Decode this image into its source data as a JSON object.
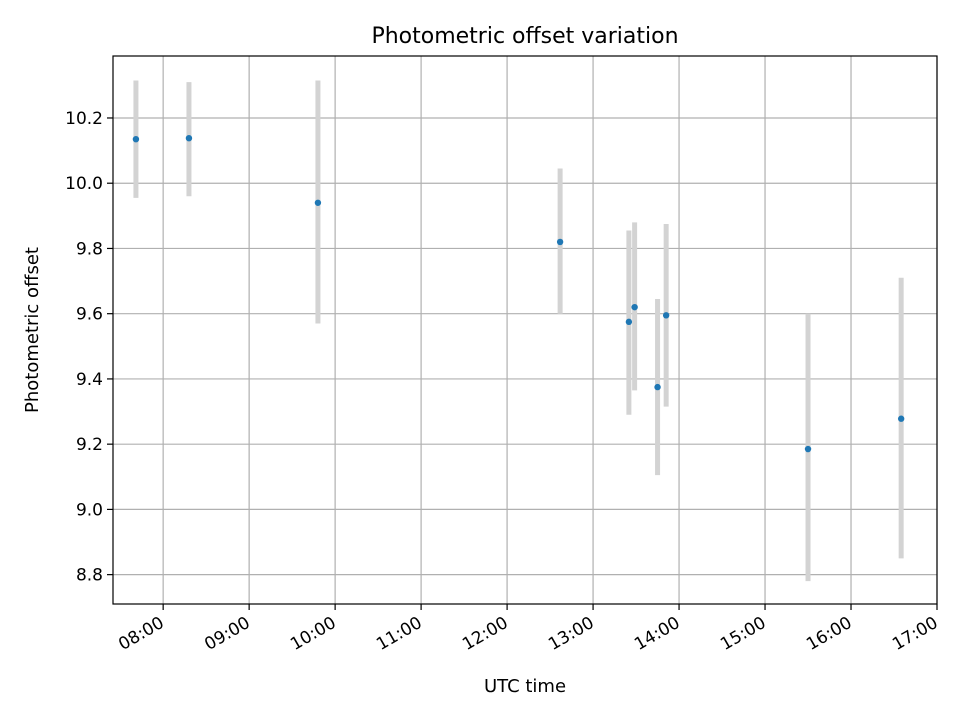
{
  "chart_data": {
    "type": "scatter",
    "title": "Photometric offset variation",
    "xlabel": "UTC time",
    "ylabel": "Photometric offset",
    "grid": true,
    "xlim": [
      "07:25",
      "17:00"
    ],
    "ylim": [
      8.71,
      10.39
    ],
    "x_ticks": [
      "08:00",
      "09:00",
      "10:00",
      "11:00",
      "12:00",
      "13:00",
      "14:00",
      "15:00",
      "16:00",
      "17:00"
    ],
    "y_ticks": [
      "8.8",
      "9.0",
      "9.2",
      "9.4",
      "9.6",
      "9.8",
      "10.0",
      "10.2"
    ],
    "points": [
      {
        "time": "07:41",
        "value": 10.135,
        "err_low": 9.955,
        "err_high": 10.315
      },
      {
        "time": "08:18",
        "value": 10.138,
        "err_low": 9.96,
        "err_high": 10.31
      },
      {
        "time": "09:48",
        "value": 9.94,
        "err_low": 9.57,
        "err_high": 10.315
      },
      {
        "time": "12:37",
        "value": 9.82,
        "err_low": 9.6,
        "err_high": 10.045
      },
      {
        "time": "13:25",
        "value": 9.575,
        "err_low": 9.29,
        "err_high": 9.855
      },
      {
        "time": "13:29",
        "value": 9.62,
        "err_low": 9.365,
        "err_high": 9.88
      },
      {
        "time": "13:45",
        "value": 9.375,
        "err_low": 9.105,
        "err_high": 9.645
      },
      {
        "time": "13:51",
        "value": 9.595,
        "err_low": 9.315,
        "err_high": 9.875
      },
      {
        "time": "15:30",
        "value": 9.185,
        "err_low": 8.78,
        "err_high": 9.6
      },
      {
        "time": "16:35",
        "value": 9.278,
        "err_low": 8.85,
        "err_high": 9.71
      }
    ],
    "colors": {
      "marker": "#1f77b4",
      "errorbar": "#d3d3d3",
      "grid": "#b0b0b0"
    }
  }
}
